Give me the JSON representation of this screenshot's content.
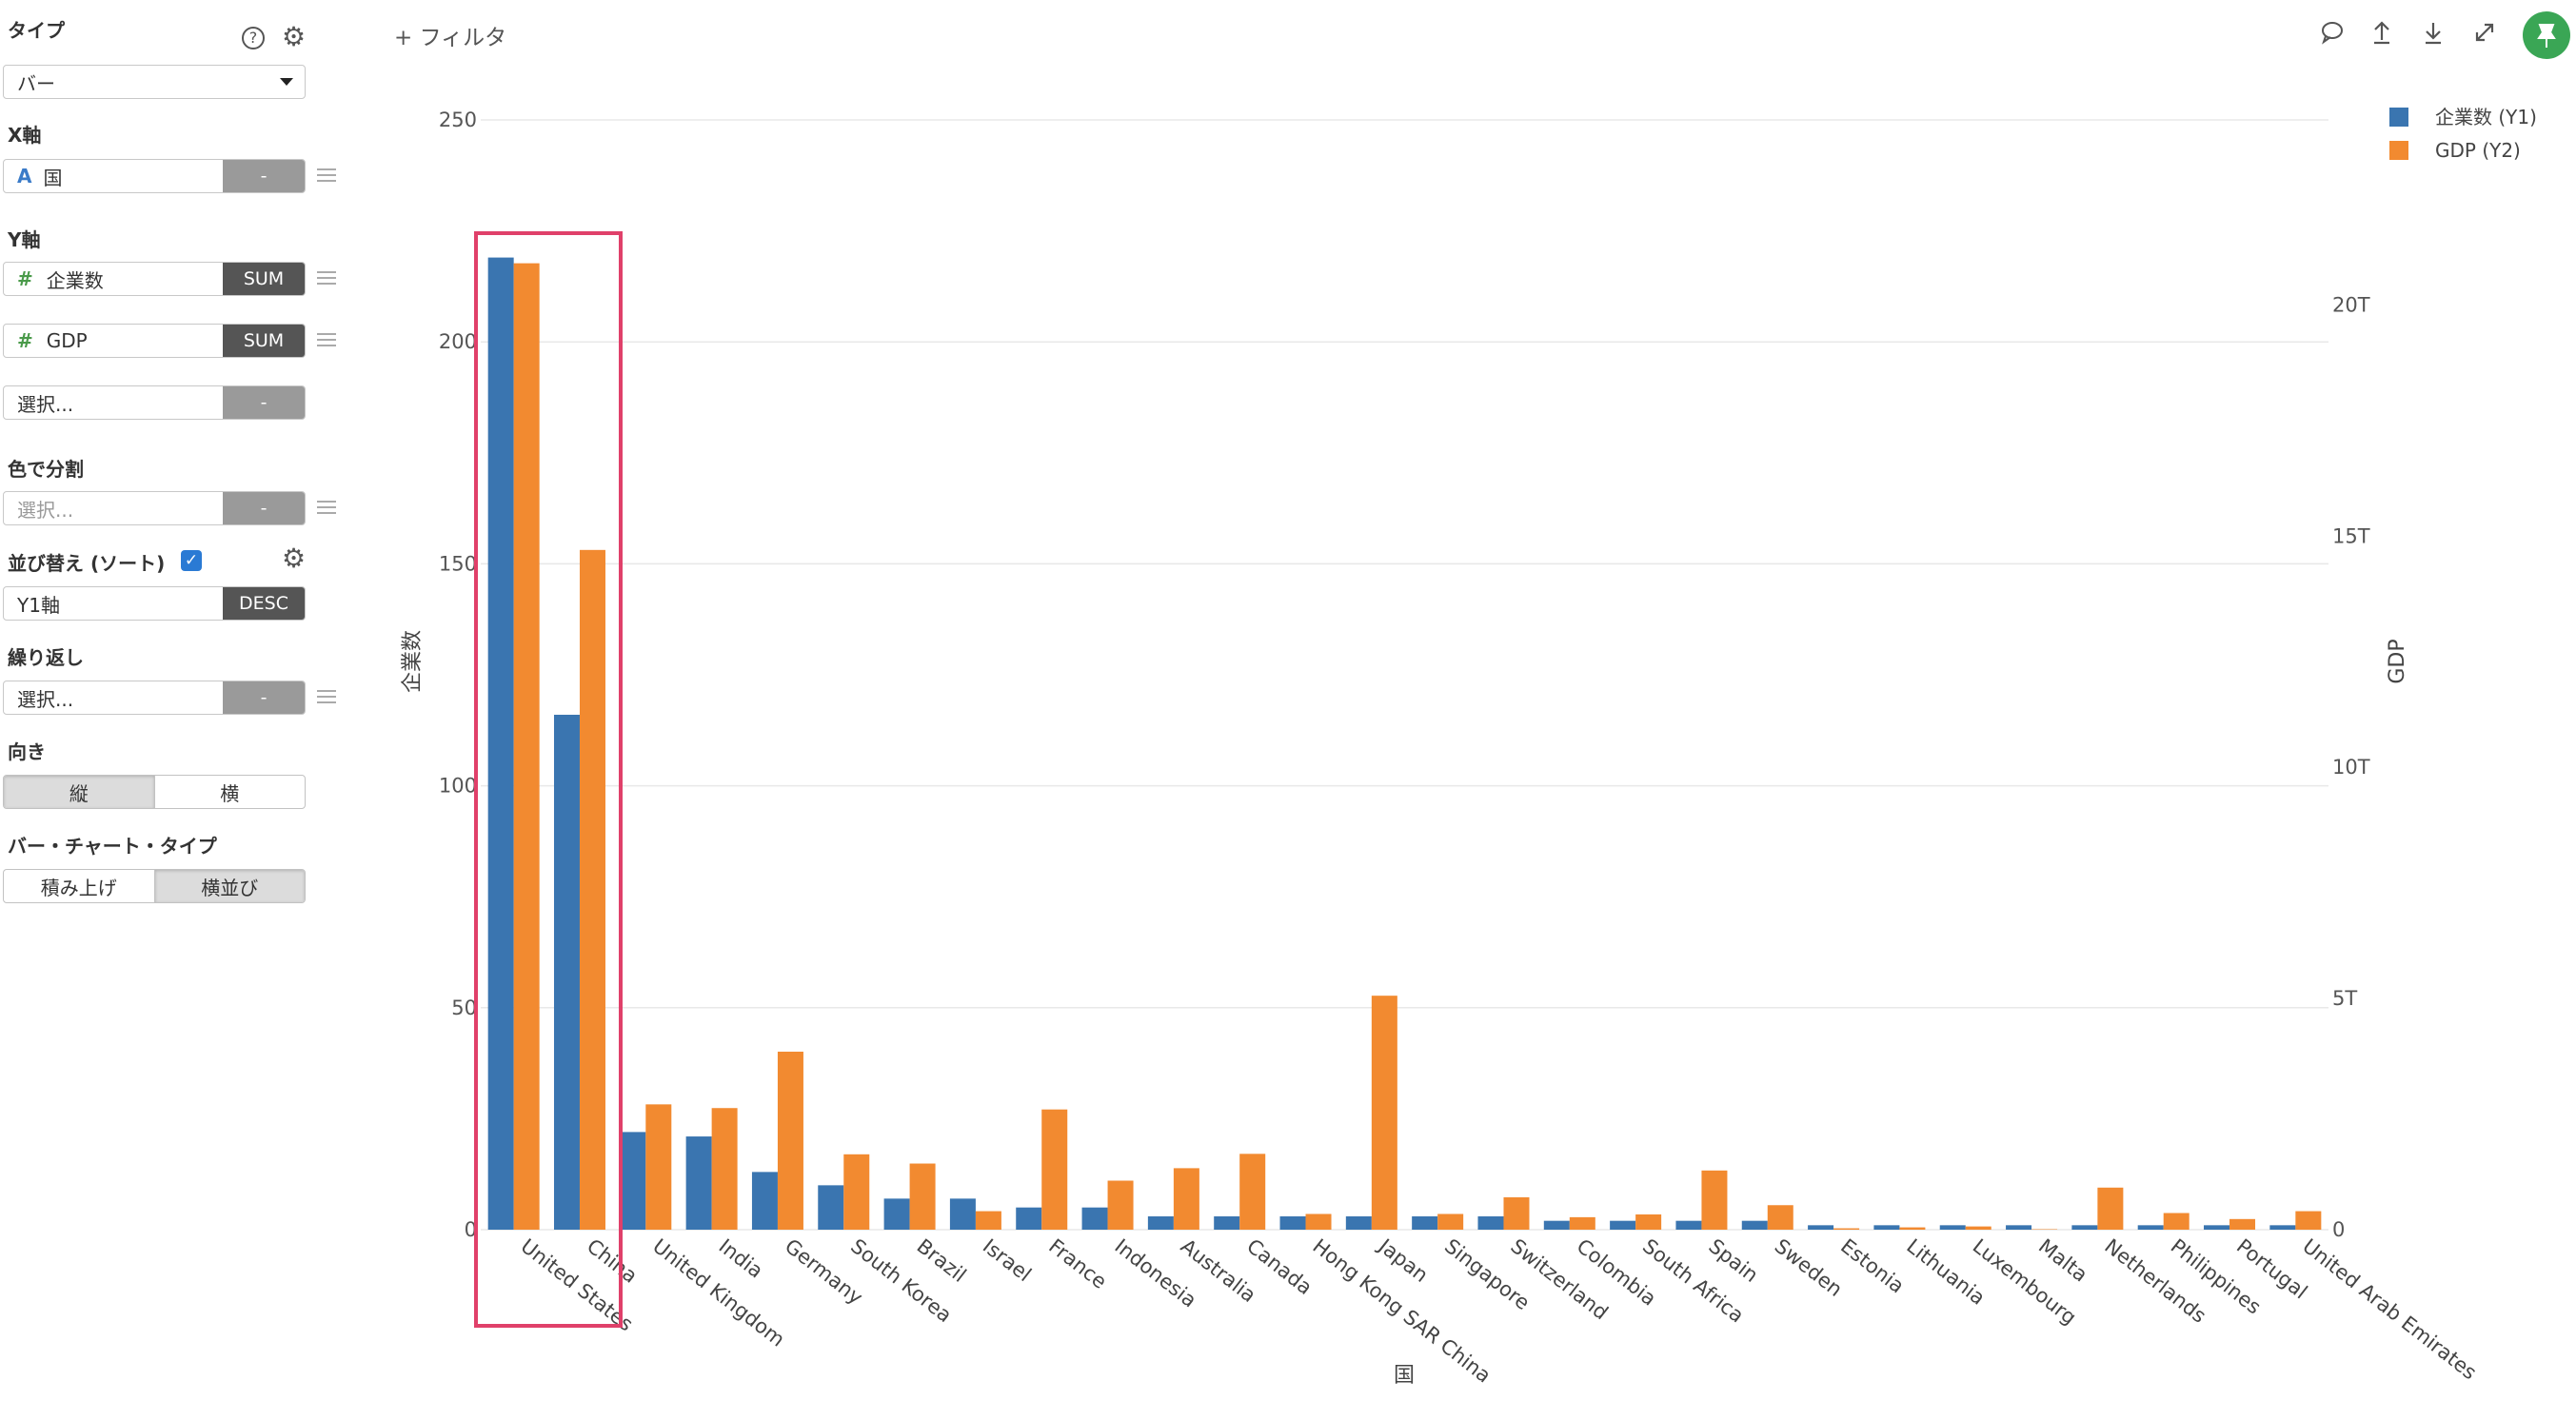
{
  "panel": {
    "type_label": "タイプ",
    "type_value": "バー",
    "xaxis_label": "X軸",
    "xaxis_field": "国",
    "xaxis_btn": "-",
    "yaxis_label": "Y軸",
    "y1_field": "企業数",
    "y1_btn": "SUM",
    "y2_field": "GDP",
    "y2_btn": "SUM",
    "y3_placeholder": "選択...",
    "y3_btn": "-",
    "color_label": "色で分割",
    "color_placeholder": "選択...",
    "color_btn": "-",
    "sort_label": "並び替え (ソート)",
    "sort_field": "Y1軸",
    "sort_btn": "DESC",
    "repeat_label": "繰り返し",
    "repeat_placeholder": "選択...",
    "repeat_btn": "-",
    "direction_label": "向き",
    "direction_vertical": "縦",
    "direction_horizontal": "横",
    "bartype_label": "バー・チャート・タイプ",
    "bartype_stacked": "積み上げ",
    "bartype_side": "横並び"
  },
  "toolbar": {
    "filter_label": "+ フィルタ"
  },
  "colors": {
    "series1": "#3a75b0",
    "series2": "#f28a30",
    "highlight": "#e0406a",
    "pin": "#3aa655"
  },
  "chart_data": {
    "type": "bar",
    "xlabel": "国",
    "ylabel": "企業数",
    "y2label": "GDP",
    "ylim": [
      0,
      250
    ],
    "y2lim": [
      0,
      24
    ],
    "yticks": [
      "0",
      "50",
      "100",
      "150",
      "200",
      "250"
    ],
    "y2ticks": [
      "0",
      "5T",
      "10T",
      "15T",
      "20T"
    ],
    "legend_position": "top-right",
    "categories": [
      "United States",
      "China",
      "United Kingdom",
      "India",
      "Germany",
      "South Korea",
      "Brazil",
      "Israel",
      "France",
      "Indonesia",
      "Australia",
      "Canada",
      "Hong Kong SAR China",
      "Japan",
      "Singapore",
      "Switzerland",
      "Colombia",
      "South Africa",
      "Spain",
      "Sweden",
      "Estonia",
      "Lithuania",
      "Luxembourg",
      "Malta",
      "Netherlands",
      "Philippines",
      "Portugal",
      "United Arab Emirates"
    ],
    "series": [
      {
        "name": "企業数 (Y1)",
        "axis": "y1",
        "values": [
          219,
          116,
          22,
          21,
          13,
          10,
          7,
          7,
          5,
          5,
          3,
          3,
          3,
          3,
          3,
          3,
          2,
          2,
          2,
          2,
          1,
          1,
          1,
          1,
          1,
          1,
          1,
          1
        ]
      },
      {
        "name": "GDP (Y2)",
        "axis": "y2",
        "values": [
          20.9,
          14.7,
          2.71,
          2.63,
          3.85,
          1.63,
          1.43,
          0.4,
          2.6,
          1.06,
          1.33,
          1.64,
          0.34,
          5.06,
          0.34,
          0.7,
          0.27,
          0.33,
          1.28,
          0.53,
          0.03,
          0.05,
          0.07,
          0.01,
          0.91,
          0.36,
          0.23,
          0.4
        ]
      }
    ]
  }
}
